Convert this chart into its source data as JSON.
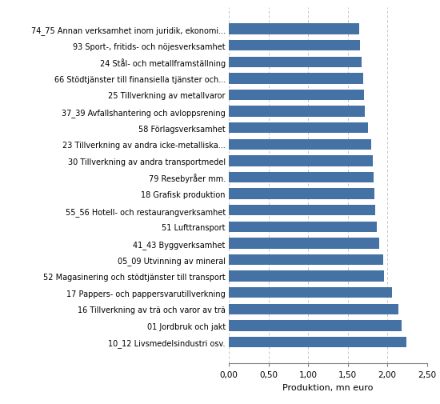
{
  "categories": [
    "74_75 Annan verksamhet inom juridik, ekonomi...",
    "93 Sport-, fritids- och nöjesverksamhet",
    "24 Stål- och metallframställning",
    "66 Stödtjänster till finansiella tjänster och...",
    "25 Tillverkning av metallvaror",
    "37_39 Avfallshantering och avloppsrening",
    "58 Förlagsverksamhet",
    "23 Tillverkning av andra icke-metalliska...",
    "30 Tillverkning av andra transportmedel",
    "79 Resebyråer mm.",
    "18 Grafisk produktion",
    "55_56 Hotell- och restaurangverksamhet",
    "51 Lufttransport",
    "41_43 Byggverksamhet",
    "05_09 Utvinning av mineral",
    "52 Magasinering och stödtjänster till transport",
    "17 Pappers- och pappersvarutillverkning",
    "16 Tillverkning av trä och varor av trä",
    "01 Jordbruk och jakt",
    "10_12 Livsmedelsindustri osv."
  ],
  "values": [
    1.65,
    1.66,
    1.68,
    1.7,
    1.71,
    1.72,
    1.76,
    1.8,
    1.82,
    1.83,
    1.84,
    1.85,
    1.87,
    1.9,
    1.95,
    1.96,
    2.06,
    2.14,
    2.18,
    2.24
  ],
  "bar_color": "#4472a4",
  "xlabel": "Produktion, mn euro",
  "xlim": [
    0,
    2.5
  ],
  "xticks": [
    0.0,
    0.5,
    1.0,
    1.5,
    2.0,
    2.5
  ],
  "xticklabels": [
    "0,00",
    "0,50",
    "1,00",
    "1,50",
    "2,00",
    "2,50"
  ],
  "background_color": "#ffffff",
  "grid_color": "#bebebe",
  "bar_height": 0.65,
  "label_fontsize": 7.0,
  "tick_fontsize": 7.5,
  "xlabel_fontsize": 8.0
}
